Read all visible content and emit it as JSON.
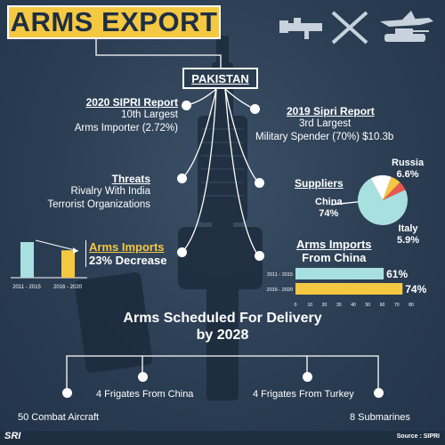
{
  "title": "ARMS EXPORT",
  "country": "PAKISTAN",
  "sipri_2020": {
    "heading": "2020 SIPRI Report",
    "line1": "10th Largest",
    "line2": "Arms Importer (2.72%)"
  },
  "sipri_2019": {
    "heading": "2019 Sipri Report",
    "line1": "3rd Largest",
    "line2": "Military Spender (70%) $10.3b"
  },
  "threats": {
    "heading": "Threats",
    "line1": "Rivalry With India",
    "line2": "Terrorist Organizations"
  },
  "suppliers": {
    "heading": "Suppliers",
    "labels": [
      {
        "name": "Russia",
        "value": "6.6%"
      },
      {
        "name": "China",
        "value": "74%"
      },
      {
        "name": "Italy",
        "value": "5.9%"
      }
    ]
  },
  "imports": {
    "heading": "Arms Imports",
    "line1": "23% Decrease"
  },
  "imports_china": {
    "heading": "Arms Imports",
    "line1": "From China"
  },
  "delivery": {
    "heading_line1": "Arms Scheduled For Delivery",
    "heading_line2": "by 2028",
    "items": [
      "50 Combat Aircraft",
      "4 Frigates From China",
      "4 Frigates From Turkey",
      "8 Submarines"
    ]
  },
  "source": "Source : SIPRI",
  "logo": "SRI",
  "colors": {
    "accent": "#f5c842",
    "teal": "#a8e0e0",
    "navy": "#2a3c50"
  },
  "chart_data": [
    {
      "type": "bar",
      "categories": [
        "2011 - 2015",
        "2016 - 2020"
      ],
      "values": [
        100,
        77
      ],
      "colors": [
        "#a8e0e0",
        "#f5c842"
      ]
    },
    {
      "type": "pie",
      "categories": [
        "China",
        "Russia",
        "Italy",
        "Others"
      ],
      "values": [
        74,
        6.6,
        5.9,
        13.5
      ],
      "colors": [
        "#a8e0e0",
        "#f5c842",
        "#e85a4f",
        "#ffffff"
      ]
    },
    {
      "type": "bar",
      "orientation": "horizontal",
      "categories": [
        "2011 - 2015",
        "2016 - 2020"
      ],
      "values": [
        61,
        74
      ],
      "value_labels": [
        "61%",
        "74%"
      ],
      "colors": [
        "#a8e0e0",
        "#f5c842"
      ],
      "xlim": [
        0,
        80
      ],
      "xticks": [
        "0",
        "10",
        "20",
        "30",
        "40",
        "50",
        "60",
        "70",
        "80"
      ]
    }
  ]
}
